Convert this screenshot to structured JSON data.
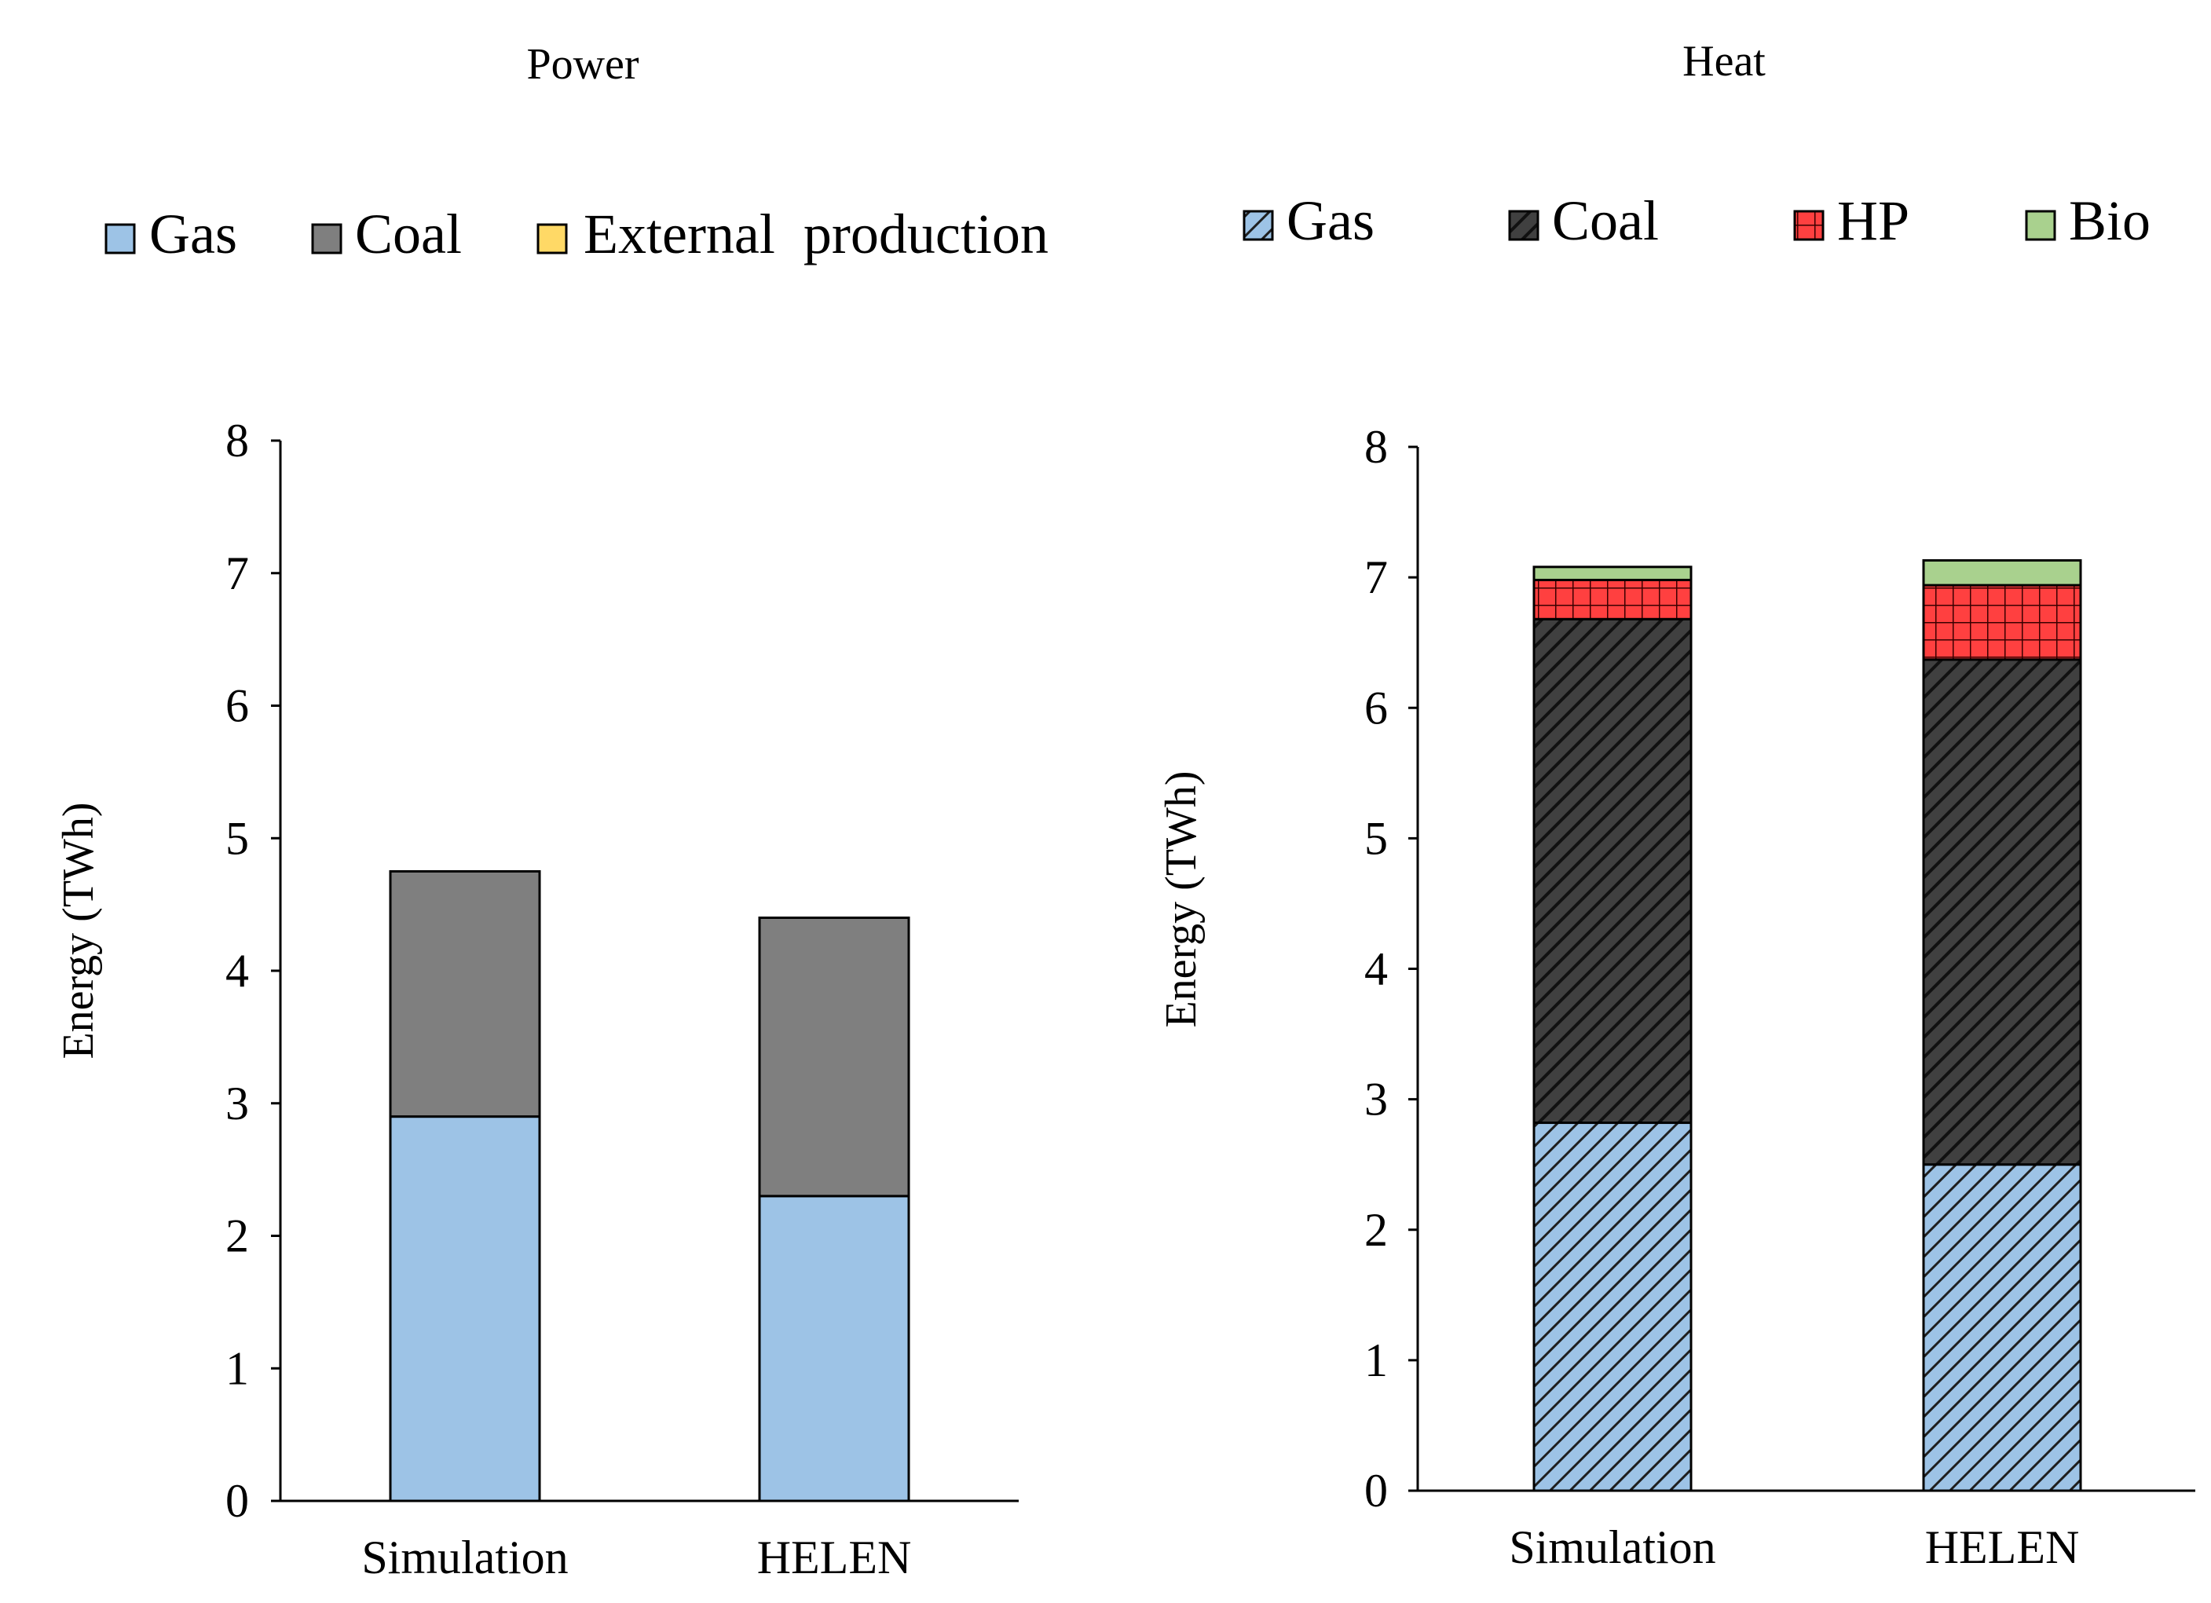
{
  "chart_data": [
    {
      "type": "bar",
      "stacked": true,
      "title": "Power",
      "categories": [
        "Simulation",
        "HELEN"
      ],
      "series": [
        {
          "name": "Gas",
          "values": [
            2.9,
            2.3
          ],
          "color": "#9dc3e6",
          "pattern": "solid"
        },
        {
          "name": "Coal",
          "values": [
            1.85,
            2.1
          ],
          "color": "#7f7f7f",
          "pattern": "solid"
        },
        {
          "name": "External  production",
          "values": [
            0,
            0
          ],
          "color": "#ffd966",
          "pattern": "solid"
        }
      ],
      "xlabel": "",
      "ylabel": "Energy  (TWh)",
      "ylim": [
        0,
        8
      ],
      "yticks": [
        0,
        1,
        2,
        3,
        4,
        5,
        6,
        7,
        8
      ],
      "grid": false,
      "legend_position": "top"
    },
    {
      "type": "bar",
      "stacked": true,
      "title": "Heat",
      "categories": [
        "Simulation",
        "HELEN"
      ],
      "series": [
        {
          "name": "Gas",
          "values": [
            2.82,
            2.5
          ],
          "color": "#9dc3e6",
          "pattern": "diagonal-hatch"
        },
        {
          "name": "Coal",
          "values": [
            3.86,
            3.87
          ],
          "color": "#404040",
          "pattern": "diagonal-hatch"
        },
        {
          "name": "HP",
          "values": [
            0.3,
            0.57
          ],
          "color": "#ff4040",
          "pattern": "grid"
        },
        {
          "name": "Bio",
          "values": [
            0.1,
            0.19
          ],
          "color": "#a9d18e",
          "pattern": "solid"
        }
      ],
      "xlabel": "",
      "ylabel": "Energy  (TWh)",
      "ylim": [
        0,
        8
      ],
      "yticks": [
        0,
        1,
        2,
        3,
        4,
        5,
        6,
        7,
        8
      ],
      "grid": false,
      "legend_position": "top"
    }
  ]
}
